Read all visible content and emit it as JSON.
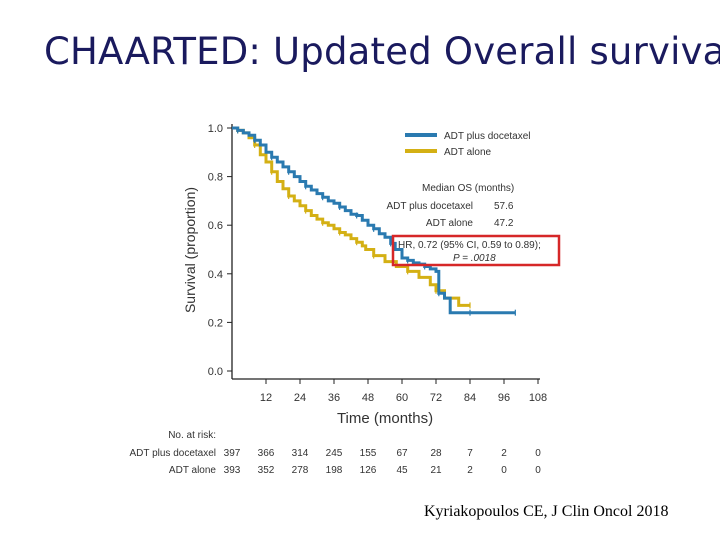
{
  "slide": {
    "title": "CHAARTED: Updated Overall survival",
    "citation": "Kyriakopoulos CE, J Clin Oncol 2018"
  },
  "chart_data": {
    "type": "line",
    "title": "",
    "xlabel": "Time (months)",
    "ylabel": "Survival (proportion)",
    "xlim": [
      0,
      108
    ],
    "ylim": [
      0,
      1.0
    ],
    "x_ticks": [
      12,
      24,
      36,
      48,
      60,
      72,
      84,
      96,
      108
    ],
    "y_ticks": [
      "0.0",
      "0.2",
      "0.4",
      "0.6",
      "0.8",
      "1.0"
    ],
    "series": [
      {
        "name": "ADT plus docetaxel",
        "color": "#2a7ab0",
        "x": [
          0,
          2,
          4,
          6,
          8,
          10,
          12,
          14,
          16,
          18,
          20,
          22,
          24,
          26,
          28,
          30,
          32,
          34,
          36,
          38,
          40,
          42,
          44,
          46,
          48,
          50,
          52,
          54,
          56,
          57.6,
          60,
          62,
          64,
          66,
          68,
          70,
          72,
          73,
          75,
          77,
          84,
          90,
          96,
          100
        ],
        "y": [
          1.0,
          0.99,
          0.98,
          0.97,
          0.95,
          0.93,
          0.9,
          0.88,
          0.86,
          0.84,
          0.82,
          0.8,
          0.78,
          0.76,
          0.745,
          0.73,
          0.715,
          0.7,
          0.69,
          0.675,
          0.66,
          0.645,
          0.64,
          0.62,
          0.6,
          0.585,
          0.565,
          0.55,
          0.525,
          0.5,
          0.465,
          0.455,
          0.445,
          0.44,
          0.43,
          0.42,
          0.41,
          0.32,
          0.3,
          0.24,
          0.24,
          0.24,
          0.24,
          0.24
        ]
      },
      {
        "name": "ADT alone",
        "color": "#d4b014",
        "x": [
          0,
          2,
          4,
          6,
          8,
          10,
          12,
          14,
          16,
          18,
          20,
          22,
          24,
          26,
          28,
          30,
          32,
          34,
          36,
          38,
          40,
          42,
          44,
          46,
          47.2,
          50,
          54,
          58,
          62,
          66,
          70,
          72,
          75,
          80,
          84
        ],
        "y": [
          1.0,
          0.99,
          0.98,
          0.96,
          0.93,
          0.89,
          0.86,
          0.82,
          0.78,
          0.75,
          0.72,
          0.7,
          0.68,
          0.66,
          0.64,
          0.625,
          0.61,
          0.6,
          0.585,
          0.57,
          0.56,
          0.545,
          0.53,
          0.515,
          0.5,
          0.475,
          0.45,
          0.43,
          0.41,
          0.385,
          0.355,
          0.33,
          0.3,
          0.27,
          0.27
        ]
      }
    ],
    "legend": {
      "position": "top-right",
      "entries": [
        "ADT plus docetaxel",
        "ADT alone"
      ]
    },
    "median_os": {
      "header": "Median OS (months)",
      "rows": [
        {
          "label": "ADT plus docetaxel",
          "value": "57.6"
        },
        {
          "label": "ADT alone",
          "value": "47.2"
        }
      ]
    },
    "annotation": {
      "line1": "HR, 0.72 (95% CI, 0.59 to 0.89);",
      "line2": "P = .0018",
      "box_color": "#d62728"
    },
    "at_risk": {
      "header": "No. at risk:",
      "rows": [
        {
          "label": "ADT plus docetaxel",
          "values": [
            "397",
            "366",
            "314",
            "245",
            "155",
            "67",
            "28",
            "7",
            "2",
            "0"
          ]
        },
        {
          "label": "ADT alone",
          "values": [
            "393",
            "352",
            "278",
            "198",
            "126",
            "45",
            "21",
            "2",
            "0",
            "0"
          ]
        }
      ]
    }
  }
}
